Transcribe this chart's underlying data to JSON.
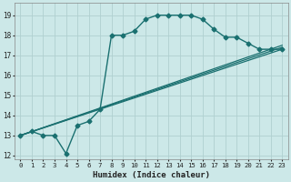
{
  "xlabel": "Humidex (Indice chaleur)",
  "ylabel": "",
  "background_color": "#cce8e8",
  "grid_color": "#b0d0d0",
  "line_color": "#1a7070",
  "xlim": [
    -0.5,
    23.5
  ],
  "ylim": [
    11.8,
    19.6
  ],
  "yticks": [
    12,
    13,
    14,
    15,
    16,
    17,
    18,
    19
  ],
  "xticks": [
    0,
    1,
    2,
    3,
    4,
    5,
    6,
    7,
    8,
    9,
    10,
    11,
    12,
    13,
    14,
    15,
    16,
    17,
    18,
    19,
    20,
    21,
    22,
    23
  ],
  "series": [
    {
      "x": [
        0,
        1,
        2,
        3,
        4,
        5,
        6,
        7,
        8,
        9,
        10,
        11,
        12,
        13,
        14,
        15,
        16,
        17,
        18,
        19,
        20,
        21,
        22,
        23
      ],
      "y": [
        13.0,
        13.2,
        13.0,
        13.0,
        12.1,
        13.5,
        13.7,
        14.3,
        18.0,
        18.0,
        18.2,
        18.8,
        19.0,
        19.0,
        19.0,
        19.0,
        18.8,
        18.3,
        17.9,
        17.9,
        17.6,
        17.3,
        17.3,
        17.3
      ],
      "marker": "D",
      "markersize": 2.5,
      "linewidth": 1.0
    },
    {
      "x": [
        0,
        23
      ],
      "y": [
        13.0,
        17.3
      ],
      "marker": null,
      "markersize": 0,
      "linewidth": 0.9
    },
    {
      "x": [
        0,
        23
      ],
      "y": [
        13.0,
        17.5
      ],
      "marker": null,
      "markersize": 0,
      "linewidth": 0.9
    },
    {
      "x": [
        0,
        23
      ],
      "y": [
        13.0,
        17.4
      ],
      "marker": null,
      "markersize": 0,
      "linewidth": 0.9
    }
  ]
}
